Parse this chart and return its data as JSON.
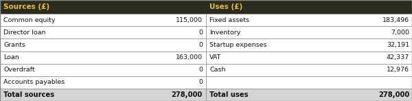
{
  "header_bg": "#2b2b1e",
  "header_text_color": "#e8c030",
  "header_col1": "Sources (£)",
  "header_col2": "Uses (£)",
  "row_bg": "#ffffff",
  "total_bg": "#d4d4d4",
  "border_color": "#888888",
  "text_color": "#111111",
  "sources": [
    [
      "Common equity",
      "115,000"
    ],
    [
      "Director loan",
      "0"
    ],
    [
      "Grants",
      "0"
    ],
    [
      "Loan",
      "163,000"
    ],
    [
      "Overdraft",
      "0"
    ],
    [
      "Accounts payables",
      "0"
    ]
  ],
  "uses": [
    [
      "Fixed assets",
      "183,496"
    ],
    [
      "Inventory",
      "7,000"
    ],
    [
      "Startup expenses",
      "32,191"
    ],
    [
      "VAT",
      "42,337"
    ],
    [
      "Cash",
      "12,976"
    ],
    [
      "",
      ""
    ]
  ],
  "total_sources_label": "Total sources",
  "total_sources_value": "278,000",
  "total_uses_label": "Total uses",
  "total_uses_value": "278,000",
  "figwidth": 6.0,
  "figheight": 1.47,
  "dpi": 100
}
